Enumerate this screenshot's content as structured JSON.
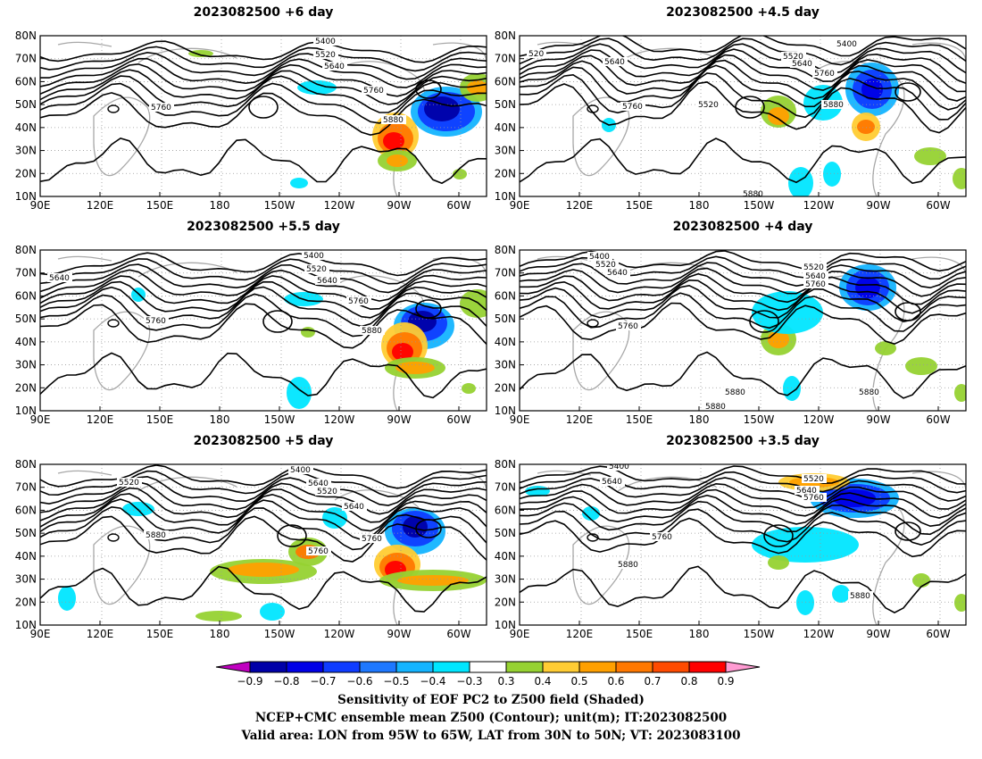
{
  "panels": [
    {
      "title": "2023082500  +6 day",
      "contour_labels": [
        "5400",
        "5520",
        "5640",
        "5760",
        "5880",
        "5760"
      ]
    },
    {
      "title": "2023082500  +4.5 day",
      "contour_labels": [
        "5400",
        "5520",
        "5640",
        "5760",
        "5520",
        "5760",
        "5880",
        "5880",
        "520",
        "5640"
      ]
    },
    {
      "title": "2023082500  +5.5 day",
      "contour_labels": [
        "5400",
        "5520",
        "5640",
        "5760",
        "5880",
        "5760",
        "5640"
      ]
    },
    {
      "title": "2023082500  +4 day",
      "contour_labels": [
        "5400",
        "5520",
        "5640",
        "5520",
        "5640",
        "5760",
        "5760",
        "5880",
        "5880",
        "5880"
      ]
    },
    {
      "title": "2023082500  +5 day",
      "contour_labels": [
        "5400",
        "5520",
        "5640",
        "5520",
        "5640",
        "5760",
        "5880",
        "5760"
      ]
    },
    {
      "title": "2023082500  +3.5 day",
      "contour_labels": [
        "5400",
        "5640",
        "5520",
        "5640",
        "5760",
        "5760",
        "5880",
        "5880"
      ]
    }
  ],
  "axes": {
    "lat_labels": [
      "80N",
      "70N",
      "60N",
      "50N",
      "40N",
      "30N",
      "20N",
      "10N"
    ],
    "lon_labels": [
      "90E",
      "120E",
      "150E",
      "180",
      "150W",
      "120W",
      "90W",
      "60W"
    ]
  },
  "colorbar": {
    "labels": [
      "−0.9",
      "−0.8",
      "−0.7",
      "−0.6",
      "−0.5",
      "−0.4",
      "−0.3",
      "0.3",
      "0.4",
      "0.5",
      "0.6",
      "0.7",
      "0.8",
      "0.9"
    ],
    "colors": [
      "#c000c0",
      "#0000a8",
      "#0000e6",
      "#0f3cff",
      "#1e78ff",
      "#14b4ff",
      "#00e6ff",
      "#ffffff",
      "#96d232",
      "#ffcc33",
      "#ffa000",
      "#ff7800",
      "#ff4b00",
      "#ff0000",
      "#ff9bd2"
    ]
  },
  "caption": {
    "line1": "Sensitivity of EOF PC2 to Z500 field (Shaded)",
    "line2": "NCEP+CMC ensemble mean Z500 (Contour); unit(m); IT:2023082500",
    "line3": "Valid area: LON from 95W to 65W, LAT from 30N to 50N; VT: 2023083100"
  }
}
